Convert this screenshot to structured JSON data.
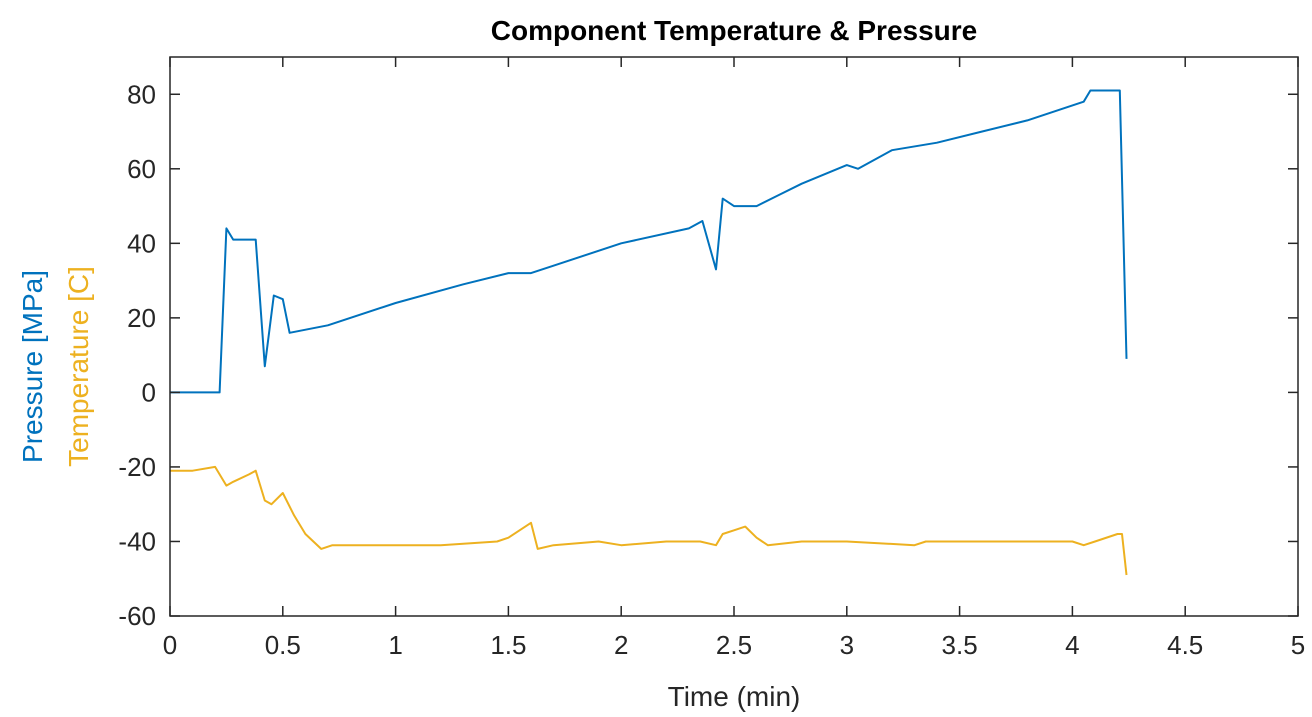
{
  "chart_data": {
    "type": "line",
    "title": "Component Temperature & Pressure",
    "xlabel": "Time (min)",
    "ylabel_parts": [
      {
        "text": "Pressure [MPa]",
        "color": "#0072BD"
      },
      {
        "text": "Temperature [C]",
        "color": "#EDB120"
      }
    ],
    "xlim": [
      0,
      5
    ],
    "ylim": [
      -60,
      90
    ],
    "x_ticks": [
      0,
      0.5,
      1,
      1.5,
      2,
      2.5,
      3,
      3.5,
      4,
      4.5,
      5
    ],
    "x_tick_labels": [
      "0",
      "0.5",
      "1",
      "1.5",
      "2",
      "2.5",
      "3",
      "3.5",
      "4",
      "4.5",
      "5"
    ],
    "y_ticks": [
      -60,
      -40,
      -20,
      0,
      20,
      40,
      60,
      80
    ],
    "y_tick_labels": [
      "-60",
      "-40",
      "-20",
      "0",
      "20",
      "40",
      "60",
      "80"
    ],
    "grid": false,
    "series": [
      {
        "color": "#0072BD",
        "x": [
          0,
          0.22,
          0.25,
          0.28,
          0.38,
          0.42,
          0.46,
          0.5,
          0.53,
          0.7,
          1.0,
          1.3,
          1.5,
          1.6,
          1.7,
          2.0,
          2.3,
          2.36,
          2.42,
          2.45,
          2.5,
          2.6,
          2.7,
          2.8,
          3.0,
          3.05,
          3.2,
          3.4,
          3.6,
          3.8,
          4.0,
          4.05,
          4.08,
          4.15,
          4.21,
          4.24
        ],
        "y": [
          0,
          0,
          44,
          41,
          41,
          7,
          26,
          25,
          16,
          18,
          24,
          29,
          32,
          32,
          34,
          40,
          44,
          46,
          33,
          52,
          50,
          50,
          53,
          56,
          61,
          60,
          65,
          67,
          70,
          73,
          77,
          78,
          81,
          81,
          81,
          9
        ]
      },
      {
        "color": "#EDB120",
        "x": [
          0,
          0.1,
          0.2,
          0.25,
          0.28,
          0.35,
          0.38,
          0.42,
          0.45,
          0.5,
          0.55,
          0.6,
          0.67,
          0.72,
          0.8,
          1.0,
          1.2,
          1.45,
          1.5,
          1.6,
          1.63,
          1.7,
          1.9,
          2.0,
          2.2,
          2.35,
          2.42,
          2.45,
          2.5,
          2.55,
          2.6,
          2.65,
          2.8,
          3.0,
          3.3,
          3.35,
          3.6,
          4.0,
          4.05,
          4.1,
          4.2,
          4.22,
          4.24
        ],
        "y": [
          -21,
          -21,
          -20,
          -25,
          -24,
          -22,
          -21,
          -29,
          -30,
          -27,
          -33,
          -38,
          -42,
          -41,
          -41,
          -41,
          -41,
          -40,
          -39,
          -35,
          -42,
          -41,
          -40,
          -41,
          -40,
          -40,
          -41,
          -38,
          -37,
          -36,
          -39,
          -41,
          -40,
          -40,
          -41,
          -40,
          -40,
          -40,
          -41,
          -40,
          -38,
          -38,
          -49
        ]
      }
    ]
  }
}
